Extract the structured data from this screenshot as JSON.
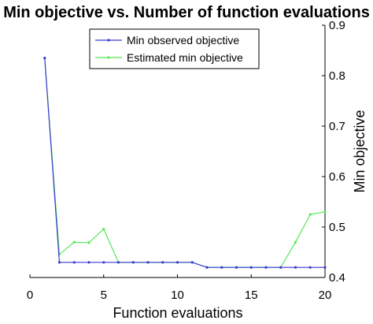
{
  "chart_data": {
    "type": "line",
    "title": "Min objective vs. Number of function evaluations",
    "xlabel": "Function evaluations",
    "ylabel": "Min objective",
    "xlim": [
      0,
      20
    ],
    "ylim": [
      0.4,
      0.9
    ],
    "x_ticks": [
      "0",
      "5",
      "10",
      "15",
      "20"
    ],
    "y_ticks": [
      "0.4",
      "0.5",
      "0.6",
      "0.7",
      "0.8",
      "0.9"
    ],
    "y_axis_side": "right",
    "grid": false,
    "legend_position": "top",
    "x": [
      1,
      2,
      3,
      4,
      5,
      6,
      7,
      8,
      9,
      10,
      11,
      12,
      13,
      14,
      15,
      16,
      17,
      18,
      19,
      20
    ],
    "series": [
      {
        "name": "Min observed objective",
        "color": "#3b3bd0",
        "values": [
          0.835,
          0.43,
          0.43,
          0.43,
          0.43,
          0.43,
          0.43,
          0.43,
          0.43,
          0.43,
          0.43,
          0.42,
          0.42,
          0.42,
          0.42,
          0.42,
          0.42,
          0.42,
          0.42,
          0.42
        ]
      },
      {
        "name": "Estimated min objective",
        "color": "#55e855",
        "values": [
          0.835,
          0.446,
          0.47,
          0.469,
          0.496,
          0.43,
          0.43,
          0.43,
          0.43,
          0.43,
          0.43,
          0.42,
          0.42,
          0.42,
          0.42,
          0.42,
          0.42,
          0.47,
          0.525,
          0.53
        ]
      }
    ]
  }
}
